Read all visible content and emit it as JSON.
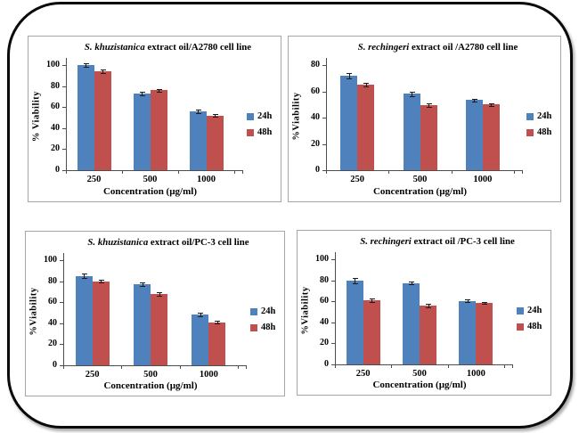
{
  "colors": {
    "series_24h": "#4F81BD",
    "series_48h": "#C0504D",
    "axis": "#4d4d4d",
    "panel_border": "#a6a6a6",
    "outer_border": "#0a0a0a"
  },
  "chart_data": [
    {
      "type": "bar",
      "title_italic": "S. khuzistanica",
      "title_rest": " extract oil/A2780 cell line",
      "xlabel": "Concentration (µg/ml)",
      "ylabel": "% Viability",
      "categories": [
        "250",
        "500",
        "1000"
      ],
      "yticks": [
        0,
        20,
        40,
        60,
        80,
        100
      ],
      "ylim": [
        0,
        100
      ],
      "grid": false,
      "legend_position": "right",
      "legend": [
        "24h",
        "48h"
      ],
      "series": [
        {
          "name": "24h",
          "color": "#4F81BD",
          "values": [
            100,
            73,
            56
          ],
          "errors": [
            2,
            1.5,
            1.5
          ]
        },
        {
          "name": "48h",
          "color": "#C0504D",
          "values": [
            94,
            76,
            52
          ],
          "errors": [
            1.5,
            1.5,
            1
          ]
        }
      ]
    },
    {
      "type": "bar",
      "title_italic": "S. rechingeri",
      "title_rest": " extract oil /A2780 cell line",
      "xlabel": "Concentration (µg/ml)",
      "ylabel": "%Viability",
      "categories": [
        "250",
        "500",
        "1000"
      ],
      "yticks": [
        0,
        20,
        40,
        60,
        80
      ],
      "ylim": [
        0,
        80
      ],
      "grid": false,
      "legend_position": "right",
      "legend": [
        "24h",
        "48h"
      ],
      "series": [
        {
          "name": "24h",
          "color": "#4F81BD",
          "values": [
            72,
            58,
            53.5
          ],
          "errors": [
            2,
            1.5,
            1
          ]
        },
        {
          "name": "48h",
          "color": "#C0504D",
          "values": [
            65,
            49.5,
            50
          ],
          "errors": [
            1.5,
            1.5,
            1
          ]
        }
      ]
    },
    {
      "type": "bar",
      "title_italic": "S. khuzistanica",
      "title_rest": " extract oil/PC-3 cell line",
      "xlabel": "Concentration (µg/ml)",
      "ylabel": "%Viability",
      "categories": [
        "250",
        "500",
        "1000"
      ],
      "yticks": [
        0,
        20,
        40,
        60,
        80,
        100
      ],
      "ylim": [
        0,
        100
      ],
      "grid": false,
      "legend_position": "right",
      "legend": [
        "24h",
        "48h"
      ],
      "series": [
        {
          "name": "24h",
          "color": "#4F81BD",
          "values": [
            85,
            77,
            48.5
          ],
          "errors": [
            2,
            1.5,
            1.5
          ]
        },
        {
          "name": "48h",
          "color": "#C0504D",
          "values": [
            80,
            68,
            41
          ],
          "errors": [
            1.5,
            1.5,
            1.5
          ]
        }
      ]
    },
    {
      "type": "bar",
      "title_italic": "S. rechingeri",
      "title_rest": " extract oil /PC-3 cell line",
      "xlabel": "Concentration (µg/ml)",
      "ylabel": "%Viability",
      "categories": [
        "250",
        "500",
        "1000"
      ],
      "yticks": [
        0,
        20,
        40,
        60,
        80,
        100
      ],
      "ylim": [
        0,
        100
      ],
      "grid": false,
      "legend_position": "right",
      "legend": [
        "24h",
        "48h"
      ],
      "series": [
        {
          "name": "24h",
          "color": "#4F81BD",
          "values": [
            80,
            77.5,
            60.5
          ],
          "errors": [
            2.5,
            1.5,
            1
          ]
        },
        {
          "name": "48h",
          "color": "#C0504D",
          "values": [
            61,
            56,
            58.5
          ],
          "errors": [
            1.5,
            1.5,
            1
          ]
        }
      ]
    }
  ]
}
